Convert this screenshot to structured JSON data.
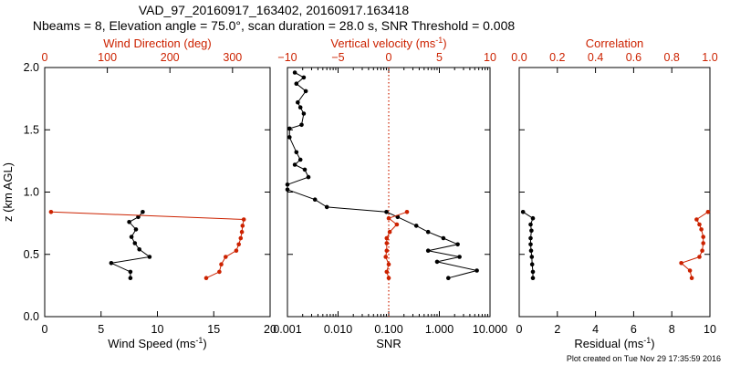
{
  "title_line1": "VAD_97_20160917_163402, 20160917.163418",
  "title_line2": "Nbeams = 8, Elevation angle = 75.0°, scan duration = 28.0 s, SNR Threshold = 0.008",
  "footer": "Plot created on Tue Nov 29 17:35:59 2016",
  "colors": {
    "primary": "#000000",
    "secondary": "#cc2200"
  },
  "chart_data": [
    {
      "type": "line",
      "ylabel": "z (km AGL)",
      "ylim": [
        0,
        2
      ],
      "yticks": [
        "0.0",
        "0.5",
        "1.0",
        "1.5",
        "2.0"
      ],
      "xlabel": "Wind Speed (ms",
      "xlabel_sup": "-1",
      "xlabel_close": ")",
      "xlim": [
        0,
        20
      ],
      "xticks": [
        "0",
        "5",
        "10",
        "15",
        "20"
      ],
      "top_xlabel": "Wind Direction (deg)",
      "top_xlim": [
        0,
        360
      ],
      "top_xticks": [
        "0",
        "100",
        "200",
        "300"
      ],
      "series": [
        {
          "role": "speed",
          "axis": "bottom",
          "color": "#000000",
          "points": [
            [
              7.6,
              0.31
            ],
            [
              7.6,
              0.36
            ],
            [
              5.9,
              0.43
            ],
            [
              9.3,
              0.48
            ],
            [
              8.4,
              0.54
            ],
            [
              8.0,
              0.59
            ],
            [
              7.7,
              0.64
            ],
            [
              8.1,
              0.7
            ],
            [
              7.5,
              0.76
            ],
            [
              8.3,
              0.8
            ],
            [
              8.7,
              0.84
            ]
          ]
        },
        {
          "role": "direction",
          "axis": "top",
          "color": "#cc2200",
          "points": [
            [
              258,
              0.31
            ],
            [
              279,
              0.36
            ],
            [
              282,
              0.42
            ],
            [
              289,
              0.48
            ],
            [
              306,
              0.53
            ],
            [
              310,
              0.58
            ],
            [
              313,
              0.63
            ],
            [
              315,
              0.68
            ],
            [
              316,
              0.73
            ],
            [
              318,
              0.78
            ],
            [
              10,
              0.84
            ]
          ]
        }
      ]
    },
    {
      "type": "line",
      "xlabel": "SNR",
      "xscale": "log",
      "xlim": [
        0.001,
        10
      ],
      "xticks": [
        "0.001",
        "0.010",
        "0.100",
        "1.000",
        "10.000"
      ],
      "top_xlabel": "Vertical velocity (ms",
      "top_xlabel_sup": "-1",
      "top_xlabel_close": ")",
      "top_xlim": [
        -10,
        10
      ],
      "top_xticks": [
        "−10",
        "−5",
        "0",
        "5",
        "10"
      ],
      "reference_line": {
        "axis": "top",
        "value": 0,
        "style": "dotted",
        "color": "#cc2200"
      },
      "series": [
        {
          "role": "snr",
          "axis": "bottom",
          "color": "#000000",
          "points": [
            [
              1.5,
              0.31
            ],
            [
              5.5,
              0.37
            ],
            [
              0.9,
              0.44
            ],
            [
              2.5,
              0.48
            ],
            [
              0.6,
              0.53
            ],
            [
              2.3,
              0.58
            ],
            [
              1.2,
              0.63
            ],
            [
              0.6,
              0.68
            ],
            [
              0.35,
              0.73
            ],
            [
              0.15,
              0.8
            ],
            [
              0.09,
              0.84
            ],
            [
              0.006,
              0.88
            ],
            [
              0.0035,
              0.94
            ],
            [
              0.001,
              1.02
            ],
            [
              0.001,
              1.06
            ],
            [
              0.0026,
              1.12
            ],
            [
              0.0022,
              1.18
            ],
            [
              0.0014,
              1.22
            ],
            [
              0.0018,
              1.26
            ],
            [
              0.0015,
              1.32
            ],
            [
              0.0011,
              1.44
            ],
            [
              0.0011,
              1.51
            ],
            [
              0.0019,
              1.54
            ],
            [
              0.0021,
              1.63
            ],
            [
              0.0018,
              1.68
            ],
            [
              0.0016,
              1.72
            ],
            [
              0.0023,
              1.81
            ],
            [
              0.0015,
              1.87
            ],
            [
              0.0021,
              1.92
            ],
            [
              0.0014,
              1.96
            ]
          ]
        },
        {
          "role": "vertical-velocity",
          "axis": "top",
          "color": "#cc2200",
          "points": [
            [
              0.0,
              0.31
            ],
            [
              -0.2,
              0.36
            ],
            [
              0.0,
              0.42
            ],
            [
              -0.3,
              0.48
            ],
            [
              -0.2,
              0.53
            ],
            [
              -0.2,
              0.59
            ],
            [
              -0.2,
              0.63
            ],
            [
              0.1,
              0.68
            ],
            [
              0.8,
              0.74
            ],
            [
              0.0,
              0.79
            ],
            [
              1.8,
              0.84
            ]
          ]
        }
      ]
    },
    {
      "type": "line",
      "xlabel": "Residual (ms",
      "xlabel_sup": "-1",
      "xlabel_close": ")",
      "xlim": [
        0,
        10
      ],
      "xticks": [
        "0",
        "2",
        "4",
        "6",
        "8",
        "10"
      ],
      "top_xlabel": "Correlation",
      "top_xlim": [
        0,
        1
      ],
      "top_xticks": [
        "0.0",
        "0.2",
        "0.4",
        "0.6",
        "0.8",
        "1.0"
      ],
      "series": [
        {
          "role": "residual",
          "axis": "bottom",
          "color": "#000000",
          "points": [
            [
              0.72,
              0.31
            ],
            [
              0.72,
              0.36
            ],
            [
              0.68,
              0.42
            ],
            [
              0.66,
              0.48
            ],
            [
              0.62,
              0.53
            ],
            [
              0.6,
              0.58
            ],
            [
              0.6,
              0.63
            ],
            [
              0.64,
              0.69
            ],
            [
              0.6,
              0.74
            ],
            [
              0.72,
              0.79
            ],
            [
              0.2,
              0.84
            ]
          ]
        },
        {
          "role": "correlation",
          "axis": "top",
          "color": "#cc2200",
          "points": [
            [
              0.905,
              0.31
            ],
            [
              0.895,
              0.37
            ],
            [
              0.85,
              0.43
            ],
            [
              0.945,
              0.48
            ],
            [
              0.96,
              0.53
            ],
            [
              0.965,
              0.59
            ],
            [
              0.965,
              0.64
            ],
            [
              0.955,
              0.7
            ],
            [
              0.945,
              0.74
            ],
            [
              0.93,
              0.78
            ],
            [
              0.99,
              0.84
            ]
          ]
        }
      ]
    }
  ]
}
